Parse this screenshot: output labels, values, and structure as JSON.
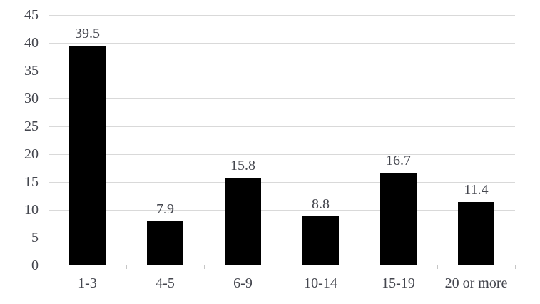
{
  "chart_data": {
    "type": "bar",
    "title": "",
    "xlabel": "",
    "ylabel": "",
    "categories": [
      "1-3",
      "4-5",
      "6-9",
      "10-14",
      "15-19",
      "20 or more"
    ],
    "values": [
      39.5,
      7.9,
      15.8,
      8.8,
      16.7,
      11.4
    ],
    "data_labels": [
      "39.5",
      "7.9",
      "15.8",
      "8.8",
      "16.7",
      "11.4"
    ],
    "ylim": [
      0,
      45
    ],
    "yticks": [
      0,
      5,
      10,
      15,
      20,
      25,
      30,
      35,
      40,
      45
    ],
    "ytick_labels": [
      "0",
      "5",
      "10",
      "15",
      "20",
      "25",
      "30",
      "35",
      "40",
      "45"
    ],
    "grid": "horizontal",
    "legend": null,
    "colors": {
      "bar": "#000000",
      "gridline": "#d9d9d9",
      "axis": "#c6c6c6",
      "text": "#44464e",
      "background": "#ffffff"
    }
  }
}
